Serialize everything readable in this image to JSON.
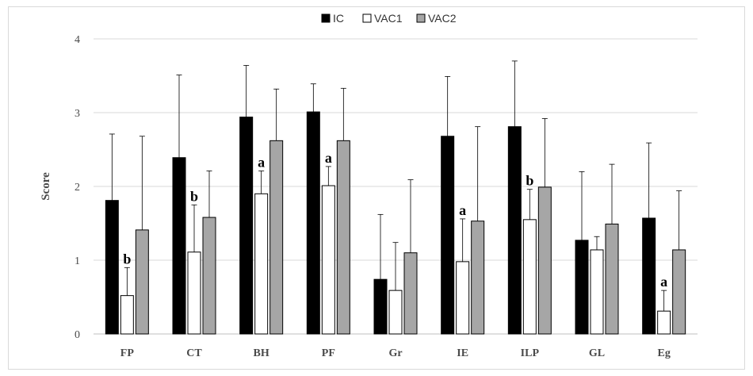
{
  "chart_data": {
    "type": "bar",
    "title": "",
    "xlabel": "",
    "ylabel": "Score",
    "ylim": [
      0,
      4
    ],
    "yticks": [
      "0",
      "1",
      "2",
      "3",
      "4"
    ],
    "grid": "horizontal",
    "legend_position": "top-center",
    "categories": [
      "FP",
      "CT",
      "BH",
      "PF",
      "Gr",
      "IE",
      "ILP",
      "GL",
      "Eg"
    ],
    "series": [
      {
        "name": "IC",
        "color": "#000000",
        "values": [
          1.81,
          2.39,
          2.94,
          3.01,
          0.74,
          2.68,
          2.81,
          1.27,
          1.57
        ],
        "error_upper": [
          0.9,
          1.12,
          0.7,
          0.38,
          0.88,
          0.81,
          0.89,
          0.93,
          1.02
        ]
      },
      {
        "name": "VAC1",
        "color": "#ffffff",
        "values": [
          0.52,
          1.11,
          1.9,
          2.01,
          0.59,
          0.98,
          1.55,
          1.14,
          0.31
        ],
        "error_upper": [
          0.38,
          0.64,
          0.31,
          0.26,
          0.65,
          0.58,
          0.41,
          0.18,
          0.28
        ]
      },
      {
        "name": "VAC2",
        "color": "#a6a6a6",
        "values": [
          1.41,
          1.58,
          2.62,
          2.62,
          1.1,
          1.53,
          1.99,
          1.49,
          1.14
        ],
        "error_upper": [
          1.27,
          0.63,
          0.7,
          0.71,
          0.99,
          1.28,
          0.93,
          0.81,
          0.8
        ]
      }
    ],
    "annotations": [
      {
        "category": "FP",
        "series": "VAC1",
        "text": "b"
      },
      {
        "category": "CT",
        "series": "VAC1",
        "text": "b"
      },
      {
        "category": "BH",
        "series": "VAC1",
        "text": "a"
      },
      {
        "category": "PF",
        "series": "VAC1",
        "text": "a"
      },
      {
        "category": "IE",
        "series": "VAC1",
        "text": "a"
      },
      {
        "category": "ILP",
        "series": "VAC1",
        "text": "b"
      },
      {
        "category": "Eg",
        "series": "VAC1",
        "text": "a"
      }
    ]
  }
}
